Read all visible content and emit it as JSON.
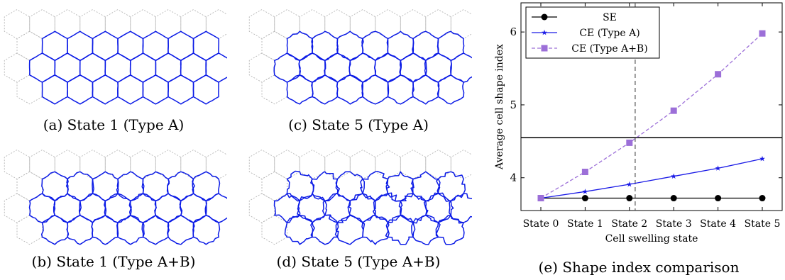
{
  "captions": {
    "a": "(a) State 1 (Type A)",
    "b": "(b) State 1 (Type A+B)",
    "c": "(c) State 5 (Type A)",
    "d": "(d) State 5 (Type A+B)",
    "e": "(e) Shape index comparison"
  },
  "colors": {
    "cell_edge": "#0b1be6",
    "grid_edge": "#b4b4b4",
    "se": "#000000",
    "ce_a": "#1a1ae6",
    "ce_ab": "#9c6fd8"
  },
  "chart_data": {
    "type": "line",
    "xlabel": "Cell swelling state",
    "ylabel": "Average cell shape index",
    "categories": [
      "State 0",
      "State 1",
      "State 2",
      "State 3",
      "State 4",
      "State 5"
    ],
    "ylim": [
      3.55,
      6.4
    ],
    "yticks": [
      4,
      5,
      6
    ],
    "series": [
      {
        "name": "SE",
        "marker": "circle",
        "line": "solid",
        "color": "#000000",
        "values": [
          3.72,
          3.72,
          3.72,
          3.72,
          3.72,
          3.72
        ]
      },
      {
        "name": "CE (Type A)",
        "marker": "star",
        "line": "solid",
        "color": "#1a1ae6",
        "values": [
          3.72,
          3.81,
          3.91,
          4.02,
          4.13,
          4.26
        ]
      },
      {
        "name": "CE (Type A+B)",
        "marker": "square",
        "line": "dashed",
        "color": "#9c6fd8",
        "values": [
          3.72,
          4.08,
          4.48,
          4.92,
          5.42,
          5.98
        ]
      }
    ],
    "hline_y": 4.55,
    "vline_x": 2.13,
    "legend_position": "top-left"
  }
}
